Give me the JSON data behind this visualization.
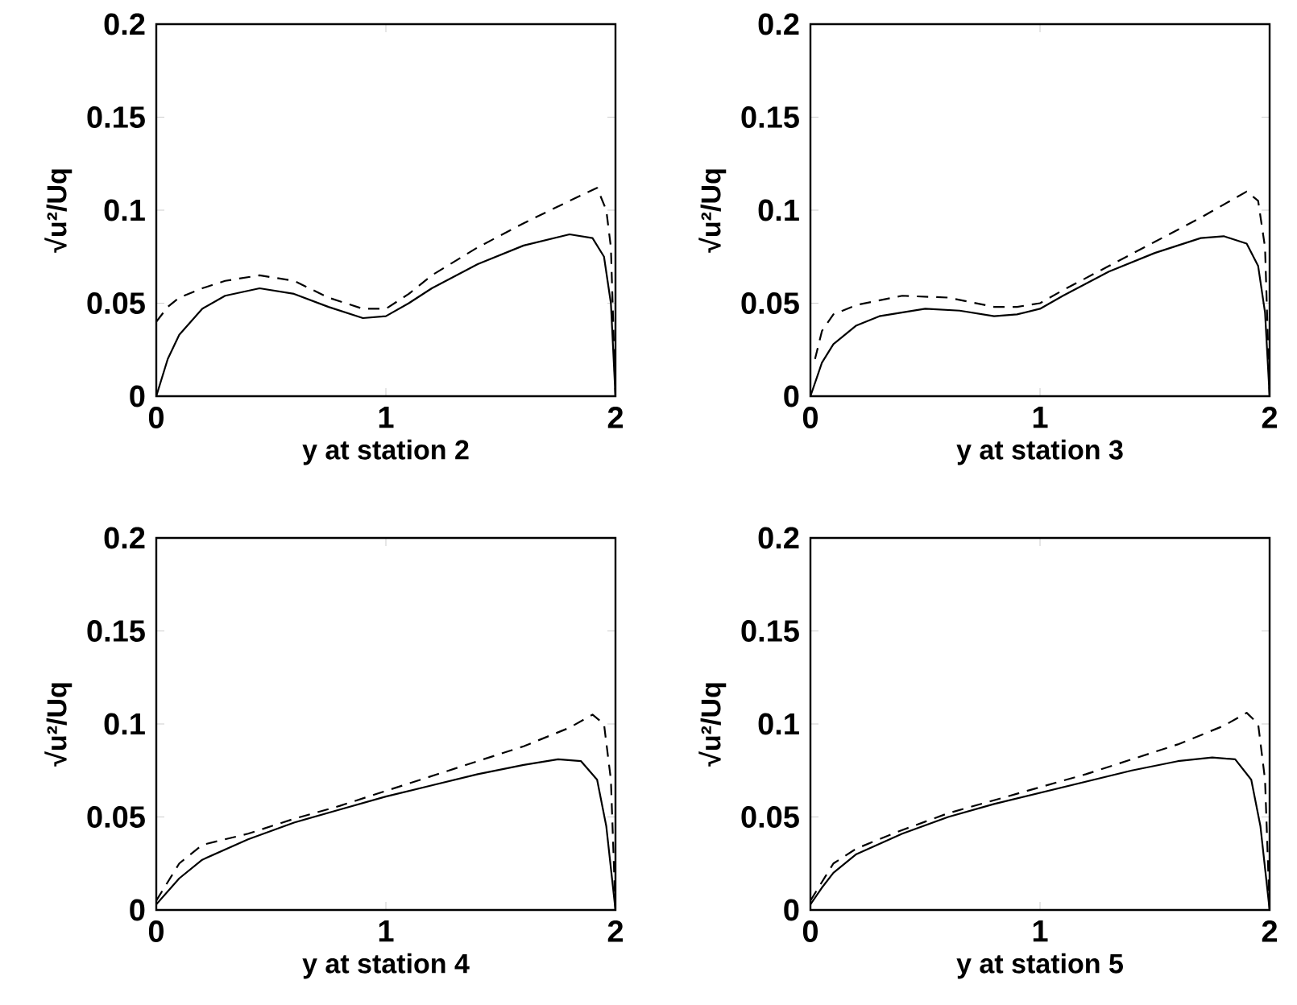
{
  "chart_data": [
    {
      "type": "line",
      "xlabel": "y at station 2",
      "ylabel": "√u²/Uq",
      "xlim": [
        0,
        2
      ],
      "ylim": [
        0,
        0.2
      ],
      "xticks": [
        0,
        1,
        2
      ],
      "yticks": [
        0,
        0.05,
        0.1,
        0.15,
        0.2
      ],
      "grid": false,
      "series": [
        {
          "color": "#000000",
          "line_style": "solid",
          "x": [
            0,
            0.05,
            0.1,
            0.2,
            0.3,
            0.45,
            0.6,
            0.75,
            0.9,
            1.0,
            1.1,
            1.2,
            1.4,
            1.6,
            1.8,
            1.9,
            1.95,
            1.98,
            2.0
          ],
          "values": [
            0,
            0.02,
            0.033,
            0.047,
            0.054,
            0.058,
            0.055,
            0.048,
            0.042,
            0.043,
            0.05,
            0.058,
            0.071,
            0.081,
            0.087,
            0.085,
            0.075,
            0.05,
            0
          ]
        },
        {
          "color": "#000000",
          "line_style": "dashed",
          "x": [
            0,
            0.05,
            0.1,
            0.2,
            0.3,
            0.45,
            0.6,
            0.75,
            0.9,
            1.0,
            1.1,
            1.2,
            1.4,
            1.6,
            1.8,
            1.92,
            1.96,
            1.98,
            2.0
          ],
          "values": [
            0.04,
            0.048,
            0.053,
            0.058,
            0.062,
            0.065,
            0.062,
            0.053,
            0.047,
            0.047,
            0.055,
            0.065,
            0.08,
            0.093,
            0.105,
            0.112,
            0.1,
            0.08,
            0
          ]
        }
      ]
    },
    {
      "type": "line",
      "xlabel": "y at station 3",
      "ylabel": "√u²/Uq",
      "xlim": [
        0,
        2
      ],
      "ylim": [
        0,
        0.2
      ],
      "xticks": [
        0,
        1,
        2
      ],
      "yticks": [
        0,
        0.05,
        0.1,
        0.15,
        0.2
      ],
      "grid": false,
      "series": [
        {
          "color": "#000000",
          "line_style": "solid",
          "x": [
            0,
            0.05,
            0.1,
            0.2,
            0.3,
            0.5,
            0.65,
            0.8,
            0.9,
            1.0,
            1.1,
            1.3,
            1.5,
            1.7,
            1.8,
            1.9,
            1.95,
            1.98,
            2.0
          ],
          "values": [
            0,
            0.018,
            0.028,
            0.038,
            0.043,
            0.047,
            0.046,
            0.043,
            0.044,
            0.047,
            0.054,
            0.067,
            0.077,
            0.085,
            0.086,
            0.082,
            0.07,
            0.045,
            0
          ]
        },
        {
          "color": "#000000",
          "line_style": "dashed",
          "x": [
            0.02,
            0.05,
            0.1,
            0.2,
            0.4,
            0.6,
            0.8,
            0.9,
            1.0,
            1.1,
            1.3,
            1.5,
            1.7,
            1.9,
            1.95,
            1.98,
            2.0
          ],
          "values": [
            0.02,
            0.035,
            0.044,
            0.049,
            0.054,
            0.053,
            0.048,
            0.048,
            0.05,
            0.057,
            0.07,
            0.083,
            0.096,
            0.11,
            0.105,
            0.08,
            0
          ]
        }
      ]
    },
    {
      "type": "line",
      "xlabel": "y at station 4",
      "ylabel": "√u²/Uq",
      "xlim": [
        0,
        2
      ],
      "ylim": [
        0,
        0.2
      ],
      "xticks": [
        0,
        1,
        2
      ],
      "yticks": [
        0,
        0.05,
        0.1,
        0.15,
        0.2
      ],
      "grid": false,
      "series": [
        {
          "color": "#000000",
          "line_style": "solid",
          "x": [
            0,
            0.05,
            0.1,
            0.2,
            0.4,
            0.6,
            0.8,
            1.0,
            1.2,
            1.4,
            1.6,
            1.75,
            1.85,
            1.92,
            1.96,
            2.0
          ],
          "values": [
            0.003,
            0.01,
            0.017,
            0.027,
            0.038,
            0.047,
            0.054,
            0.061,
            0.067,
            0.073,
            0.078,
            0.081,
            0.08,
            0.07,
            0.045,
            0
          ]
        },
        {
          "color": "#000000",
          "line_style": "dashed",
          "x": [
            0,
            0.1,
            0.2,
            0.4,
            0.6,
            0.8,
            1.0,
            1.2,
            1.4,
            1.6,
            1.8,
            1.9,
            1.95,
            1.98,
            2.0
          ],
          "values": [
            0.005,
            0.025,
            0.035,
            0.041,
            0.049,
            0.056,
            0.064,
            0.072,
            0.08,
            0.088,
            0.098,
            0.105,
            0.1,
            0.07,
            0
          ]
        }
      ]
    },
    {
      "type": "line",
      "xlabel": "y at station 5",
      "ylabel": "√u²/Uq",
      "xlim": [
        0,
        2
      ],
      "ylim": [
        0,
        0.2
      ],
      "xticks": [
        0,
        1,
        2
      ],
      "yticks": [
        0,
        0.05,
        0.1,
        0.15,
        0.2
      ],
      "grid": false,
      "series": [
        {
          "color": "#000000",
          "line_style": "solid",
          "x": [
            0,
            0.05,
            0.1,
            0.2,
            0.4,
            0.6,
            0.8,
            1.0,
            1.2,
            1.4,
            1.6,
            1.75,
            1.85,
            1.92,
            1.96,
            2.0
          ],
          "values": [
            0.003,
            0.012,
            0.02,
            0.03,
            0.041,
            0.05,
            0.057,
            0.063,
            0.069,
            0.075,
            0.08,
            0.082,
            0.081,
            0.07,
            0.045,
            0
          ]
        },
        {
          "color": "#000000",
          "line_style": "dashed",
          "x": [
            0,
            0.1,
            0.2,
            0.4,
            0.6,
            0.8,
            1.0,
            1.2,
            1.4,
            1.6,
            1.8,
            1.9,
            1.95,
            1.98,
            2.0
          ],
          "values": [
            0.005,
            0.025,
            0.033,
            0.043,
            0.052,
            0.059,
            0.066,
            0.073,
            0.081,
            0.089,
            0.099,
            0.106,
            0.1,
            0.07,
            0
          ]
        }
      ]
    }
  ]
}
